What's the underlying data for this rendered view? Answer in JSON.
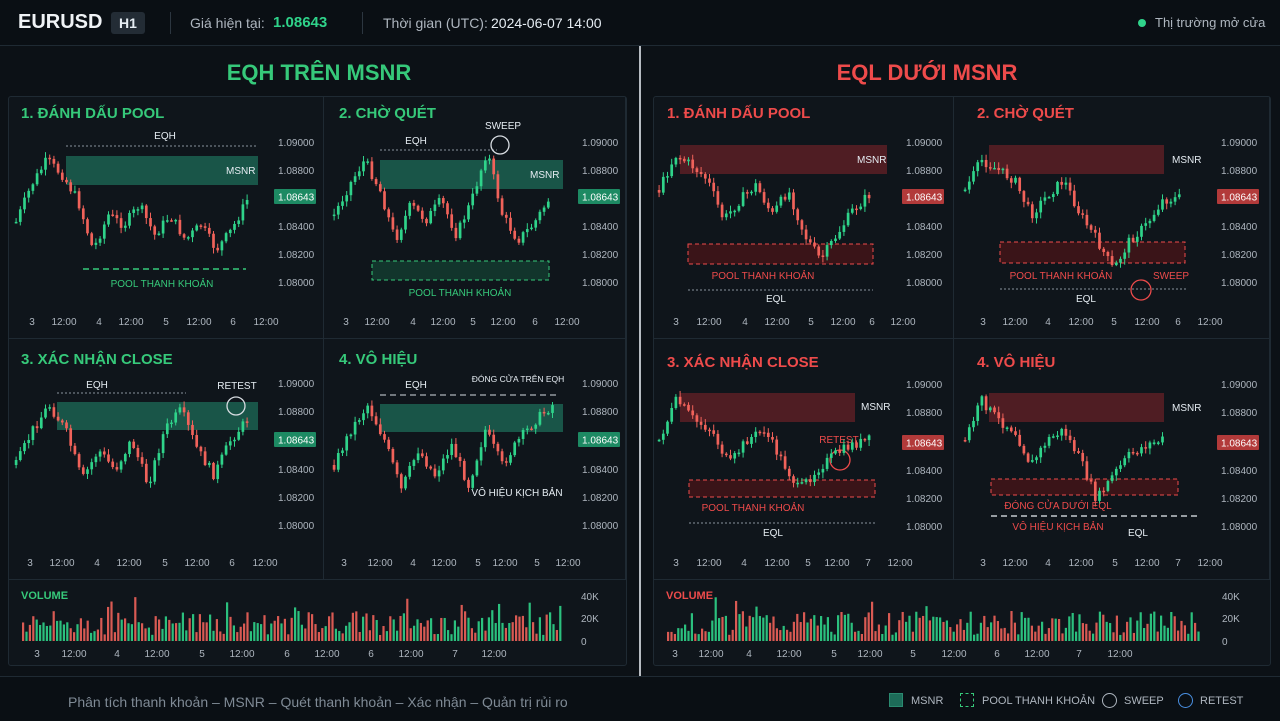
{
  "header": {
    "symbol": "EURUSD",
    "timeframe": "H1",
    "price_label": "Giá hiện tại:",
    "price": "1.08643",
    "time_label": "Thời gian (UTC):",
    "time": "2024-06-07  14:00",
    "market_status": "Thị trường mở cửa"
  },
  "left": {
    "title": "EQH TRÊN MSNR",
    "panels": [
      {
        "title": "1.  ĐÁNH DẤU POOL",
        "labels": {
          "eqh": "EQH",
          "msnr": "MSNR",
          "pool": "POOL THANH KHOẢN"
        }
      },
      {
        "title": "2.  CHỜ QUÉT",
        "labels": {
          "eqh": "EQH",
          "sweep": "SWEEP",
          "msnr": "MSNR",
          "pool": "POOL THANH KHOẢN"
        }
      },
      {
        "title": "3.  XÁC NHẬN CLOSE",
        "labels": {
          "eqh": "EQH",
          "retest": "RETEST"
        }
      },
      {
        "title": "4.  VÔ HIỆU",
        "labels": {
          "eqh": "EQH",
          "close": "ĐÓNG CỬA TRÊN EQH",
          "invalid": "VÔ HIỆU KỊCH BẢN"
        }
      }
    ],
    "x_ticks_top": [
      "3",
      "12:00",
      "4",
      "12:00",
      "5",
      "12:00",
      "6",
      "12:00"
    ],
    "x_ticks_bottom": [
      "3",
      "12:00",
      "4",
      "12:00",
      "5",
      "12:00",
      "6",
      "12:00"
    ],
    "x_ticks_p2": [
      "3",
      "12:00",
      "4",
      "12:00",
      "5",
      "12:00",
      "6",
      "12:00"
    ],
    "x_ticks_p4": [
      "3",
      "12:00",
      "4",
      "12:00",
      "5",
      "12:00",
      "5",
      "12:00"
    ],
    "volume_label": "VOLUME",
    "volume_x_ticks": [
      "3",
      "12:00",
      "4",
      "12:00",
      "5",
      "12:00",
      "6",
      "12:00",
      "6",
      "12:00",
      "7",
      "12:00"
    ]
  },
  "right": {
    "title": "EQL DƯỚI MSNR",
    "panels": [
      {
        "title": "1.  ĐÁNH DẤU POOL",
        "labels": {
          "msnr": "MSNR",
          "pool": "POOL THANH KHOẢN",
          "eql": "EQL"
        }
      },
      {
        "title": "2.  CHỜ QUÉT",
        "labels": {
          "msnr": "MSNR",
          "pool": "POOL THANH KHOẢN",
          "sweep": "SWEEP",
          "eql": "EQL"
        }
      },
      {
        "title": "3.  XÁC NHẬN CLOSE",
        "labels": {
          "msnr": "MSNR",
          "retest": "RETEST",
          "pool": "POOL THANH KHOẢN",
          "eql": "EQL"
        }
      },
      {
        "title": "4.  VÔ HIỆU",
        "labels": {
          "msnr": "MSNR",
          "close": "ĐÓNG CỬA DƯỚI EQL",
          "invalid": "VÔ HIỆU KỊCH BẢN",
          "eql": "EQL"
        }
      }
    ],
    "x_ticks_p1": [
      "3",
      "12:00",
      "4",
      "12:00",
      "5",
      "12:00",
      "6",
      "12:00"
    ],
    "x_ticks_p2": [
      "3",
      "12:00",
      "4",
      "12:00",
      "5",
      "12:00",
      "6",
      "12:00"
    ],
    "x_ticks_p3": [
      "3",
      "12:00",
      "4",
      "12:00",
      "5",
      "12:00",
      "7",
      "12:00"
    ],
    "x_ticks_p4": [
      "3",
      "12:00",
      "4",
      "12:00",
      "5",
      "12:00",
      "7",
      "12:00"
    ],
    "volume_label": "VOLUME",
    "volume_x_ticks": [
      "3",
      "12:00",
      "4",
      "12:00",
      "5",
      "12:00",
      "5",
      "12:00",
      "6",
      "12:00",
      "7",
      "12:00"
    ]
  },
  "price_axis": [
    "1.09000",
    "1.08800",
    "1.08600",
    "1.08400",
    "1.08200",
    "1.08000"
  ],
  "price_tag": "1.08643",
  "volume_axis": [
    "40K",
    "20K",
    "0"
  ],
  "footer": {
    "text": "Phân tích thanh khoản  –  MSNR  –  Quét thanh khoản  –  Xác nhận  –  Quản trị rủi ro",
    "legend": [
      {
        "label": "MSNR",
        "icon": "filled-square"
      },
      {
        "label": "POOL THANH KHOẢN",
        "icon": "dashed-square"
      },
      {
        "label": "SWEEP",
        "icon": "grey-circle"
      },
      {
        "label": "RETEST",
        "icon": "blue-circle"
      }
    ]
  },
  "colors": {
    "up": "#2fd38a",
    "down": "#f0625a",
    "green_title": "#36c97a",
    "red_title": "#ee4b4b",
    "zone_green": "#1d6b58",
    "zone_red": "#5a1e24",
    "retest_blue": "#4a90e2"
  }
}
